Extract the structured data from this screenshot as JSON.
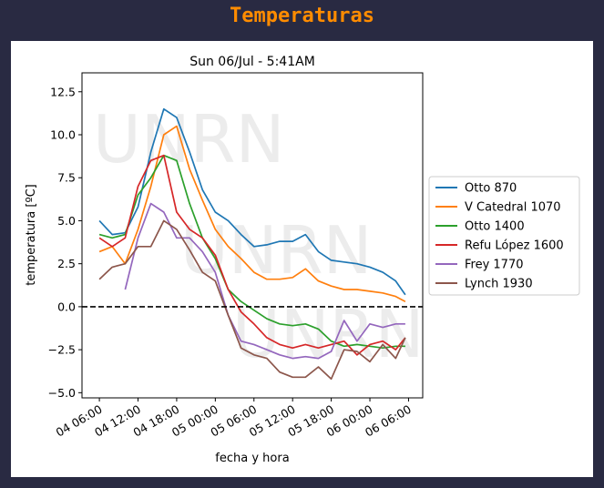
{
  "header": {
    "title": "Temperaturas"
  },
  "chart_data": {
    "type": "line",
    "title": "Sun 06/Jul - 5:41AM",
    "xlabel": "fecha y hora",
    "ylabel": "temperatura [ºC]",
    "watermark": "UNRN",
    "x_unit": "hours since 04 06:00",
    "xlim": [
      -2.7,
      50.2
    ],
    "ylim": [
      -5.3,
      13.6
    ],
    "xticks": [
      0,
      6,
      12,
      18,
      24,
      30,
      36,
      42,
      48
    ],
    "xtick_labels": [
      "04 06:00",
      "04 12:00",
      "04 18:00",
      "05 00:00",
      "05 06:00",
      "05 12:00",
      "05 18:00",
      "06 00:00",
      "06 06:00"
    ],
    "yticks": [
      12.5,
      10.0,
      7.5,
      5.0,
      2.5,
      0.0,
      -2.5,
      -5.0
    ],
    "ytick_labels": [
      "12.5",
      "10.0",
      "7.5",
      "5.0",
      "2.5",
      "0.0",
      "−2.5",
      "−5.0"
    ],
    "reference_line": {
      "y": 0,
      "style": "dashed",
      "color": "#000000"
    },
    "legend_position": "right-outside",
    "x": [
      0,
      2,
      4,
      6,
      8,
      10,
      12,
      14,
      16,
      18,
      20,
      22,
      24,
      26,
      28,
      30,
      32,
      34,
      36,
      38,
      40,
      42,
      44,
      46,
      47.5
    ],
    "series": [
      {
        "name": "Otto 870",
        "color": "#1f77b4",
        "values": [
          5.0,
          4.2,
          4.3,
          5.8,
          9.0,
          11.5,
          11.0,
          9.0,
          6.8,
          5.5,
          5.0,
          4.2,
          3.5,
          3.6,
          3.8,
          3.8,
          4.2,
          3.2,
          2.7,
          2.6,
          2.5,
          2.3,
          2.0,
          1.5,
          0.7
        ]
      },
      {
        "name": "V Catedral 1070",
        "color": "#ff7f0e",
        "values": [
          3.2,
          3.5,
          2.5,
          4.5,
          7.0,
          10.0,
          10.5,
          8.0,
          6.2,
          4.5,
          3.5,
          2.8,
          2.0,
          1.6,
          1.6,
          1.7,
          2.2,
          1.5,
          1.2,
          1.0,
          1.0,
          0.9,
          0.8,
          0.6,
          0.3
        ]
      },
      {
        "name": "Otto 1400",
        "color": "#2ca02c",
        "values": [
          4.2,
          4.0,
          4.2,
          6.5,
          7.5,
          8.8,
          8.5,
          6.0,
          4.0,
          2.8,
          1.0,
          0.3,
          -0.2,
          -0.7,
          -1.0,
          -1.1,
          -1.0,
          -1.3,
          -2.0,
          -2.3,
          -2.2,
          -2.3,
          -2.4,
          -2.3,
          -2.3
        ]
      },
      {
        "name": "Refu López 1600",
        "color": "#d62728",
        "values": [
          4.0,
          3.5,
          4.0,
          7.0,
          8.5,
          8.8,
          5.5,
          4.5,
          4.0,
          3.0,
          1.0,
          -0.3,
          -1.0,
          -1.8,
          -2.2,
          -2.4,
          -2.2,
          -2.4,
          -2.2,
          -2.0,
          -2.8,
          -2.2,
          -2.0,
          -2.5,
          -1.8
        ]
      },
      {
        "name": "Frey 1770",
        "color": "#9467bd",
        "values": [
          null,
          null,
          1.0,
          4.0,
          6.0,
          5.5,
          4.0,
          4.0,
          3.2,
          2.0,
          -0.5,
          -2.0,
          -2.2,
          -2.5,
          -2.8,
          -3.0,
          -2.9,
          -3.0,
          -2.6,
          -0.8,
          -2.0,
          -1.0,
          -1.2,
          -1.0,
          -1.0
        ]
      },
      {
        "name": "Lynch 1930",
        "color": "#8c564b",
        "values": [
          1.6,
          2.3,
          2.5,
          3.5,
          3.5,
          5.0,
          4.5,
          3.3,
          2.0,
          1.5,
          -0.5,
          -2.4,
          -2.8,
          -3.0,
          -3.8,
          -4.1,
          -4.1,
          -3.5,
          -4.2,
          -2.5,
          -2.6,
          -3.2,
          -2.2,
          -3.0,
          -1.8
        ]
      }
    ]
  }
}
